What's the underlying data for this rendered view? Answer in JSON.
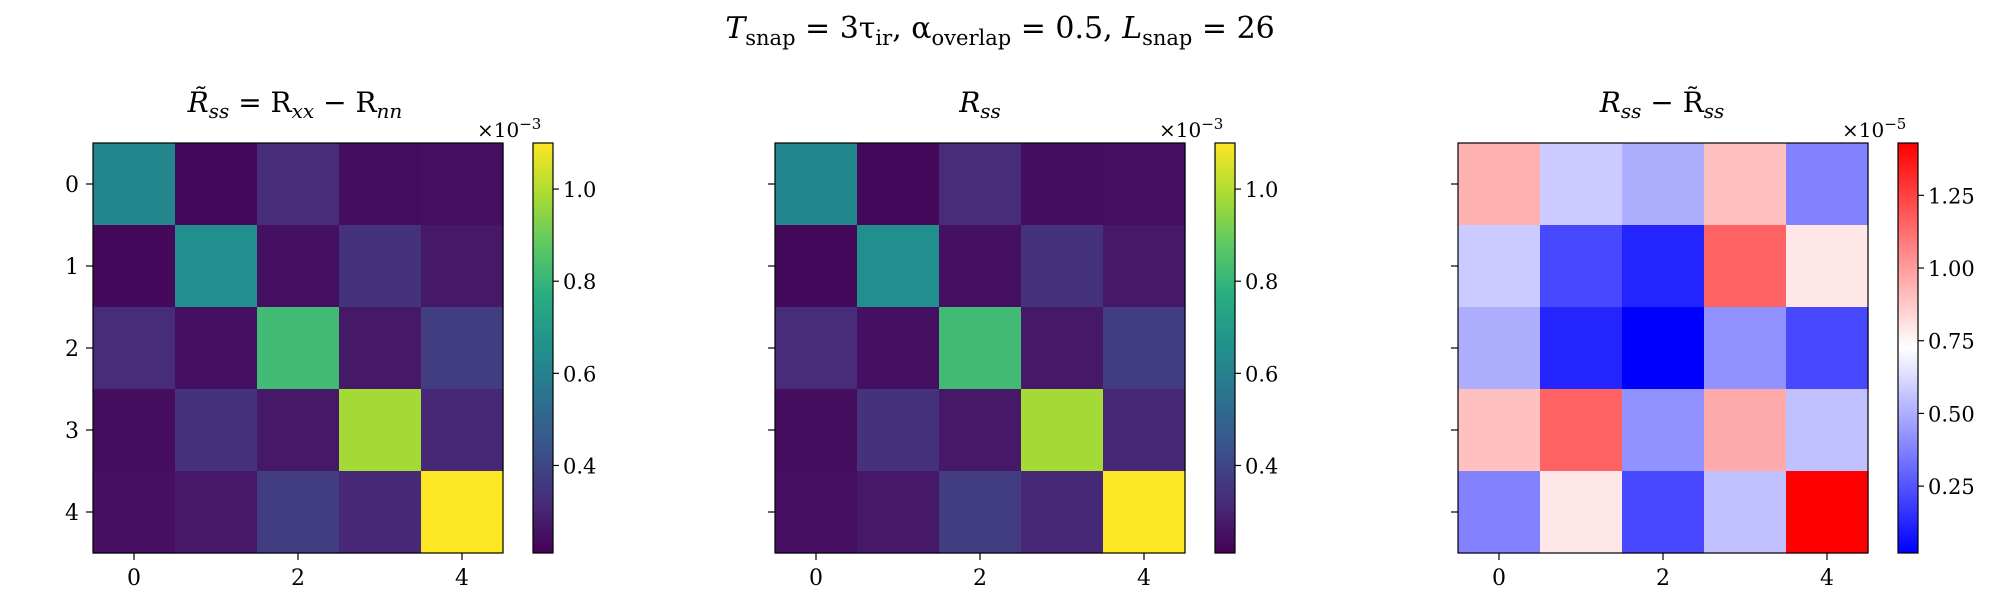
{
  "figure": {
    "suptitle": "T_snap = 3τ_ir,   α_overlap = 0.5,   L_snap = 26",
    "suptitle_parts": {
      "t_var": "T",
      "t_sub": "snap",
      "t_rhs": " = 3τ",
      "t_rhs_sub": "ir",
      "alpha": ",   α",
      "alpha_sub": "overlap",
      "alpha_rhs": " = 0.5,   ",
      "l_var": "L",
      "l_sub": "snap",
      "l_rhs": " = 26"
    }
  },
  "chart_data": [
    {
      "type": "heatmap",
      "title": "R̃_ss = R_xx − R_nn",
      "title_parts": {
        "p1": "R̃",
        "s1": "ss",
        "p2": " = R",
        "s2": "xx",
        "p3": " − R",
        "s3": "nn"
      },
      "x_ticks": [
        "0",
        "2",
        "4"
      ],
      "y_ticks": [
        "0",
        "1",
        "2",
        "3",
        "4"
      ],
      "colormap": "viridis",
      "vmin": 0.00021,
      "vmax": 0.0011,
      "values": [
        [
          0.00062,
          0.00023,
          0.00032,
          0.00024,
          0.00025
        ],
        [
          0.00023,
          0.00065,
          0.00025,
          0.00034,
          0.00027
        ],
        [
          0.00032,
          0.00025,
          0.00082,
          0.00027,
          0.00037
        ],
        [
          0.00024,
          0.00034,
          0.00027,
          0.00098,
          0.00031
        ],
        [
          0.00025,
          0.00027,
          0.00037,
          0.00031,
          0.0011
        ]
      ],
      "colorbar": {
        "multiplier": "×10",
        "exponent": "−3",
        "ticks": [
          {
            "value": 0.0004,
            "label": "0.4"
          },
          {
            "value": 0.0006,
            "label": "0.6"
          },
          {
            "value": 0.0008,
            "label": "0.8"
          },
          {
            "value": 0.001,
            "label": "1.0"
          }
        ]
      }
    },
    {
      "type": "heatmap",
      "title": "R_ss",
      "title_parts": {
        "p1": "R",
        "s1": "ss"
      },
      "x_ticks": [
        "0",
        "2",
        "4"
      ],
      "y_ticks": [],
      "colormap": "viridis",
      "vmin": 0.00021,
      "vmax": 0.0011,
      "values": [
        [
          0.00062,
          0.00023,
          0.00032,
          0.00024,
          0.00025
        ],
        [
          0.00023,
          0.00065,
          0.00025,
          0.00034,
          0.00027
        ],
        [
          0.00032,
          0.00025,
          0.00082,
          0.00027,
          0.00037
        ],
        [
          0.00024,
          0.00034,
          0.00027,
          0.00098,
          0.00031
        ],
        [
          0.00025,
          0.00027,
          0.00037,
          0.00031,
          0.0011
        ]
      ],
      "colorbar": {
        "multiplier": "×10",
        "exponent": "−3",
        "ticks": [
          {
            "value": 0.0004,
            "label": "0.4"
          },
          {
            "value": 0.0006,
            "label": "0.6"
          },
          {
            "value": 0.0008,
            "label": "0.8"
          },
          {
            "value": 0.001,
            "label": "1.0"
          }
        ]
      }
    },
    {
      "type": "heatmap",
      "title": "R_ss − R̃_ss",
      "title_parts": {
        "p1": "R",
        "s1": "ss",
        "p2": " − R̃",
        "s2": "ss"
      },
      "x_ticks": [
        "0",
        "2",
        "4"
      ],
      "y_ticks": [],
      "colormap": "bwr",
      "vmin": 2e-07,
      "vmax": 1.43e-05,
      "values": [
        [
          9.4e-06,
          5.8e-06,
          5e-06,
          9e-06,
          3.8e-06
        ],
        [
          5.8e-06,
          2.2e-06,
          1.2e-06,
          1.16e-05,
          7.9e-06
        ],
        [
          5e-06,
          1.2e-06,
          2e-07,
          4.2e-06,
          2.2e-06
        ],
        [
          9e-06,
          1.16e-05,
          4.2e-06,
          9.6e-06,
          5.5e-06
        ],
        [
          3.8e-06,
          7.9e-06,
          2.2e-06,
          5.5e-06,
          1.43e-05
        ]
      ],
      "colorbar": {
        "multiplier": "×10",
        "exponent": "−5",
        "ticks": [
          {
            "value": 2.5e-06,
            "label": "0.25"
          },
          {
            "value": 5e-06,
            "label": "0.50"
          },
          {
            "value": 7.5e-06,
            "label": "0.75"
          },
          {
            "value": 1e-05,
            "label": "1.00"
          },
          {
            "value": 1.25e-05,
            "label": "1.25"
          }
        ]
      }
    }
  ]
}
